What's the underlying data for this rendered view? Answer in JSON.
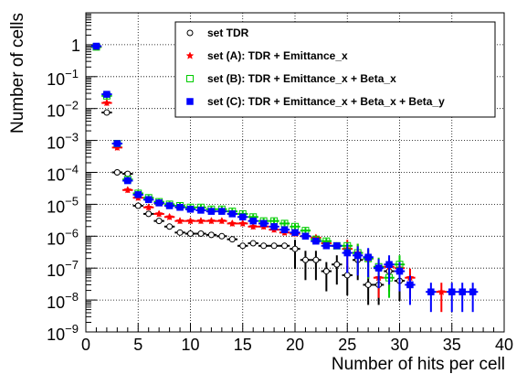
{
  "chart_data": {
    "type": "scatter",
    "xlabel": "Number of hits per cell",
    "ylabel": "Number of cells",
    "xlim": [
      0,
      40
    ],
    "ylim_log10": [
      -9,
      1
    ],
    "y_scale": "log",
    "grid": true,
    "legend_placement": "top-right",
    "x_ticks": [
      "0",
      "5",
      "10",
      "15",
      "20",
      "25",
      "30",
      "35",
      "40"
    ],
    "y_ticks": [
      {
        "base": "1",
        "exp": ""
      },
      {
        "base": "10",
        "exp": "−1"
      },
      {
        "base": "10",
        "exp": "−2"
      },
      {
        "base": "10",
        "exp": "−3"
      },
      {
        "base": "10",
        "exp": "−4"
      },
      {
        "base": "10",
        "exp": "−5"
      },
      {
        "base": "10",
        "exp": "−6"
      },
      {
        "base": "10",
        "exp": "−7"
      },
      {
        "base": "10",
        "exp": "−8"
      },
      {
        "base": "10",
        "exp": "−9"
      }
    ],
    "series": [
      {
        "name": "set TDR",
        "marker": "open-circle",
        "color": "#000000",
        "x": [
          1,
          2,
          3,
          4,
          5,
          6,
          7,
          8,
          9,
          10,
          11,
          12,
          13,
          14,
          15,
          16,
          17,
          18,
          19,
          20,
          21,
          22,
          23,
          24,
          25,
          26,
          27,
          28,
          29,
          30
        ],
        "y": [
          0.85,
          0.0075,
          0.0001,
          9e-05,
          9e-06,
          5e-06,
          3e-06,
          2e-06,
          1.3e-06,
          1.2e-06,
          1.2e-06,
          1.1e-06,
          1e-06,
          8e-07,
          5e-07,
          6e-07,
          5e-07,
          5e-07,
          5e-07,
          4e-07,
          1.8e-07,
          1.8e-07,
          8e-08,
          1.3e-07,
          6e-08,
          1.8e-07,
          3e-08,
          3e-08,
          8e-08,
          4e-08
        ]
      },
      {
        "name": "set (A): TDR + Emittance_x",
        "marker": "filled-star",
        "color": "#ff0000",
        "x": [
          1,
          2,
          3,
          4,
          5,
          6,
          7,
          8,
          9,
          10,
          11,
          12,
          13,
          14,
          15,
          16,
          17,
          18,
          19,
          20,
          21,
          22,
          23,
          24,
          25,
          26,
          27,
          28,
          29,
          30,
          31,
          34
        ],
        "y": [
          0.85,
          0.015,
          0.0006,
          2.8e-05,
          1.6e-05,
          8e-06,
          5e-06,
          4e-06,
          3e-06,
          3e-06,
          3e-06,
          3e-06,
          3e-06,
          2.5e-06,
          2.5e-06,
          2e-06,
          2e-06,
          1.6e-06,
          1.3e-06,
          1.2e-06,
          1e-06,
          9e-07,
          6e-07,
          5e-07,
          4e-07,
          3e-07,
          2e-07,
          5e-08,
          1.1e-07,
          1e-07,
          5e-08,
          1.8e-08
        ]
      },
      {
        "name": "set (B): TDR + Emittance_x + Beta_x",
        "marker": "open-square",
        "color": "#00cc00",
        "x": [
          1,
          2,
          3,
          4,
          5,
          6,
          7,
          8,
          9,
          10,
          11,
          12,
          13,
          14,
          15,
          16,
          17,
          18,
          19,
          20,
          21,
          22,
          23,
          24,
          25,
          26,
          27,
          28,
          29,
          30
        ],
        "y": [
          0.85,
          0.025,
          0.0008,
          6e-05,
          2.2e-05,
          1.6e-05,
          1.2e-05,
          1e-05,
          9e-06,
          8e-06,
          8e-06,
          7e-06,
          7e-06,
          6e-06,
          5e-06,
          4e-06,
          3e-06,
          3e-06,
          2.5e-06,
          2e-06,
          1.5e-06,
          8e-07,
          7e-07,
          5e-07,
          5e-07,
          3e-07,
          2e-07,
          1.1e-07,
          5e-08,
          1.3e-07
        ]
      },
      {
        "name": "set (C): TDR + Emittance_x + Beta_x + Beta_y",
        "marker": "filled-square",
        "color": "#0000ff",
        "x": [
          1,
          2,
          3,
          4,
          5,
          6,
          7,
          8,
          9,
          10,
          11,
          12,
          13,
          14,
          15,
          16,
          17,
          18,
          19,
          20,
          21,
          22,
          23,
          24,
          25,
          26,
          27,
          28,
          29,
          30,
          31,
          33,
          35,
          36,
          37
        ],
        "y": [
          0.9,
          0.028,
          0.0008,
          5.5e-05,
          2e-05,
          1.4e-05,
          1.1e-05,
          9e-06,
          8e-06,
          7e-06,
          6.5e-06,
          6e-06,
          6e-06,
          5e-06,
          4e-06,
          3e-06,
          2.5e-06,
          2e-06,
          1.6e-06,
          1.3e-06,
          1e-06,
          7e-07,
          5e-07,
          5e-07,
          3e-07,
          2.5e-07,
          2.2e-07,
          1e-07,
          1.3e-07,
          8e-08,
          3e-08,
          1.8e-08,
          1.8e-08,
          1.8e-08,
          1.8e-08
        ]
      }
    ]
  }
}
